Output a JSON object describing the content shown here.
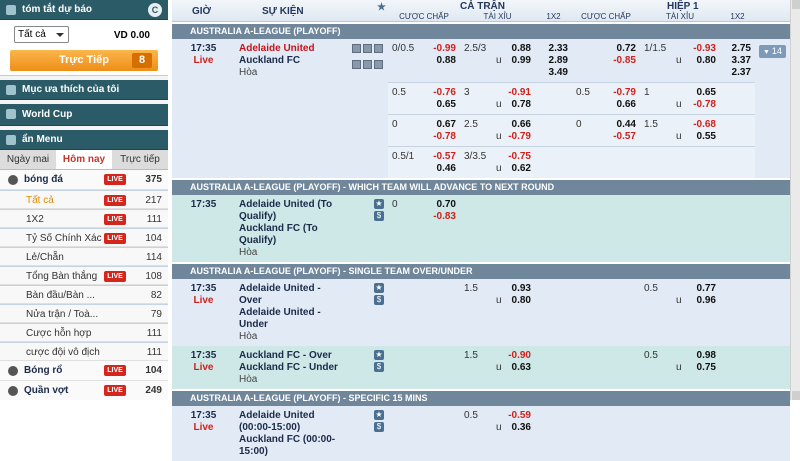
{
  "sidebar": {
    "summary_title": "tóm tắt dự báo",
    "filter": "Tất cả",
    "balance": "VD 0.00",
    "live_button": "Trực Tiếp",
    "live_count": 8,
    "favorites": "Mục ưa thích của tôi",
    "world_cup": "World Cup",
    "hide_menu": "ẩn Menu",
    "tabs": [
      "Ngày mai",
      "Hôm nay",
      "Trực tiếp"
    ],
    "active_tab": 1,
    "menu": [
      {
        "label": "bóng đá",
        "badge": "LIVE",
        "count": 375,
        "kind": "sport"
      },
      {
        "label": "Tất cả",
        "badge": "LIVE",
        "count": 217,
        "kind": "sub",
        "active": true
      },
      {
        "label": "1X2",
        "badge": "LIVE",
        "count": 111,
        "kind": "sub"
      },
      {
        "label": "Tỷ Số Chính Xác",
        "badge": "LIVE",
        "count": 104,
        "kind": "sub"
      },
      {
        "label": "Lẻ/Chẵn",
        "count": 114,
        "kind": "sub"
      },
      {
        "label": "Tổng Bàn thắng",
        "badge": "LIVE",
        "count": 108,
        "kind": "sub"
      },
      {
        "label": "Bàn đầu/Bàn ...",
        "count": 82,
        "kind": "sub"
      },
      {
        "label": "Nửa trận / Toà...",
        "count": 79,
        "kind": "sub"
      },
      {
        "label": "Cược hỗn hợp",
        "count": 111,
        "kind": "sub"
      },
      {
        "label": "cược đội vô địch",
        "count": 111,
        "kind": "sub"
      },
      {
        "label": "Bóng rổ",
        "badge": "LIVE",
        "count": 104,
        "kind": "sport"
      },
      {
        "label": "Quần vợt",
        "badge": "LIVE",
        "count": 249,
        "kind": "sport"
      }
    ]
  },
  "table": {
    "headers": {
      "time": "GIỜ",
      "event": "SỰ KIỆN",
      "full_time": "CẢ TRẬN",
      "first_half": "HIỆP 1",
      "sub": [
        "CƯỢC CHẤP",
        "TÀI XỈU",
        "1X2",
        "CƯỢC CHẤP",
        "TÀI XỈU",
        "1X2"
      ]
    },
    "sections": [
      {
        "title": "AUSTRALIA A-LEAGUE (PLAYOFF)",
        "matches": [
          {
            "time": "17:35",
            "status": "Live",
            "teams": [
              "Adelaide United",
              "Auckland FC"
            ],
            "draw": "Hòa",
            "favorite": 0,
            "icons": true,
            "more": "14",
            "shade": "blue",
            "lines": [
              {
                "ft_hdp": {
                  "line": "0/0.5",
                  "home": "-0.99",
                  "away": "0.88"
                },
                "ft_ou": {
                  "line": "2.5/3",
                  "unit": "u",
                  "over": "0.88",
                  "under": "0.99"
                },
                "ft_1x2": [
                  "2.33",
                  "2.89",
                  "3.49"
                ],
                "h1_hdp": {
                  "home": "0.72",
                  "away": "-0.85"
                },
                "h1_ou": {
                  "line": "1/1.5",
                  "unit": "u",
                  "over": "-0.93",
                  "under": "0.80"
                },
                "h1_1x2": [
                  "2.75",
                  "3.37",
                  "2.37"
                ]
              },
              {
                "ft_hdp": {
                  "line": "0.5",
                  "home": "-0.76",
                  "away": "0.65"
                },
                "ft_ou": {
                  "line": "3",
                  "unit": "u",
                  "over": "-0.91",
                  "under": "0.78"
                },
                "h1_hdp": {
                  "line": "0.5",
                  "home": "-0.79",
                  "away": "0.66"
                },
                "h1_ou": {
                  "line": "1",
                  "unit": "u",
                  "over": "0.65",
                  "under": "-0.78"
                }
              },
              {
                "ft_hdp": {
                  "line": "0",
                  "home": "0.67",
                  "away": "-0.78"
                },
                "ft_ou": {
                  "line": "2.5",
                  "unit": "u",
                  "over": "0.66",
                  "under": "-0.79"
                },
                "h1_hdp": {
                  "line": "0",
                  "home": "0.44",
                  "away": "-0.57"
                },
                "h1_ou": {
                  "line": "1.5",
                  "unit": "u",
                  "over": "-0.68",
                  "under": "0.55"
                }
              },
              {
                "ft_hdp": {
                  "line": "0.5/1",
                  "home": "-0.57",
                  "away": "0.46"
                },
                "ft_ou": {
                  "line": "3/3.5",
                  "unit": "u",
                  "over": "-0.75",
                  "under": "0.62"
                }
              }
            ]
          }
        ]
      },
      {
        "title": "AUSTRALIA A-LEAGUE (PLAYOFF) - WHICH TEAM WILL ADVANCE TO NEXT ROUND",
        "matches": [
          {
            "time": "17:35",
            "teams": [
              "Adelaide United (To Qualify)",
              "Auckland FC (To Qualify)"
            ],
            "draw": "Hòa",
            "shade": "teal",
            "lines": [
              {
                "ft_hdp": {
                  "line": "0",
                  "home": "0.70",
                  "away": "-0.83"
                }
              }
            ]
          }
        ]
      },
      {
        "title": "AUSTRALIA A-LEAGUE (PLAYOFF) - SINGLE TEAM OVER/UNDER",
        "matches": [
          {
            "time": "17:35",
            "status": "Live",
            "teams": [
              "Adelaide United - Over",
              "Adelaide United - Under"
            ],
            "draw": "Hòa",
            "shade": "blue",
            "lines": [
              {
                "ft_ou": {
                  "line": "1.5",
                  "unit": "u",
                  "over": "0.93",
                  "under": "0.80"
                },
                "h1_ou": {
                  "line": "0.5",
                  "unit": "u",
                  "over": "0.77",
                  "under": "0.96"
                }
              }
            ]
          },
          {
            "time": "17:35",
            "status": "Live",
            "teams": [
              "Auckland FC - Over",
              "Auckland FC - Under"
            ],
            "draw": "Hòa",
            "shade": "teal",
            "lines": [
              {
                "ft_ou": {
                  "line": "1.5",
                  "unit": "u",
                  "over": "-0.90",
                  "under": "0.63"
                },
                "h1_ou": {
                  "line": "0.5",
                  "unit": "u",
                  "over": "0.98",
                  "under": "0.75"
                }
              }
            ]
          }
        ]
      },
      {
        "title": "AUSTRALIA A-LEAGUE (PLAYOFF) - SPECIFIC 15 MINS",
        "matches": [
          {
            "time": "17:35",
            "status": "Live",
            "teams": [
              "Adelaide United (00:00-15:00)",
              "Auckland FC (00:00-15:00)"
            ],
            "shade": "blue",
            "lines": [
              {
                "ft_ou": {
                  "line": "0.5",
                  "unit": "u",
                  "over": "-0.59",
                  "under": "0.36"
                }
              }
            ]
          }
        ]
      }
    ]
  }
}
